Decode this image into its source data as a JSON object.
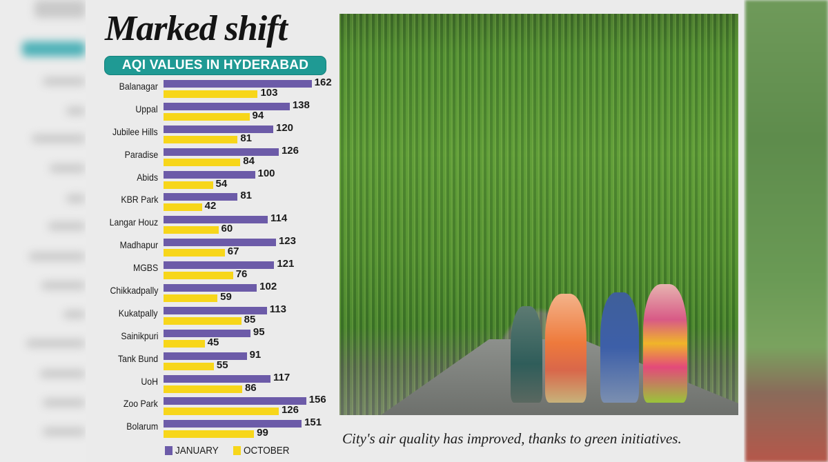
{
  "article": {
    "title": "Marked shift",
    "subtitle": "AQI VALUES IN HYDERABAD",
    "caption": "City's air quality has improved, thanks to green initiatives.",
    "photo_alt": "Women walking on a road under a canopy of hanging green vines"
  },
  "colors": {
    "january": "#6c5ba8",
    "october": "#f7d61a",
    "subtitle_bg": "#1f9a94"
  },
  "legend": {
    "january": "JANUARY",
    "october": "OCTOBER"
  },
  "chart_data": {
    "type": "bar",
    "orientation": "horizontal",
    "title": "Marked shift",
    "subtitle": "AQI VALUES IN HYDERABAD",
    "xlabel": "",
    "ylabel": "",
    "grid": false,
    "legend_position": "bottom",
    "categories": [
      "Balanagar",
      "Uppal",
      "Jubilee Hills",
      "Paradise",
      "Abids",
      "KBR Park",
      "Langar Houz",
      "Madhapur",
      "MGBS",
      "Chikkadpally",
      "Kukatpally",
      "Sainikpuri",
      "Tank Bund",
      "UoH",
      "Zoo Park",
      "Bolarum"
    ],
    "series": [
      {
        "name": "JANUARY",
        "color": "#6c5ba8",
        "values": [
          162,
          138,
          120,
          126,
          100,
          81,
          114,
          123,
          121,
          102,
          113,
          95,
          91,
          117,
          156,
          151
        ]
      },
      {
        "name": "OCTOBER",
        "color": "#f7d61a",
        "values": [
          103,
          94,
          81,
          84,
          54,
          42,
          60,
          67,
          76,
          59,
          85,
          45,
          55,
          86,
          126,
          99
        ]
      }
    ]
  }
}
